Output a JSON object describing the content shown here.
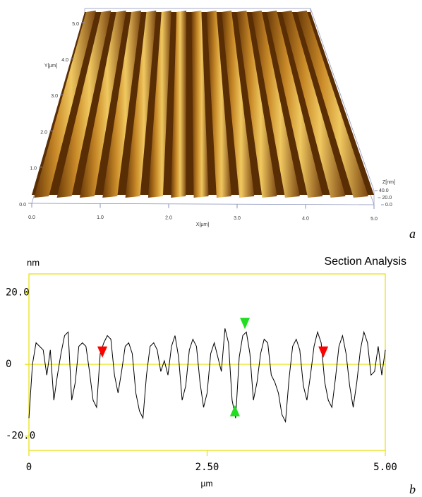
{
  "chart_data": [
    {
      "type": "surface",
      "panel_label": "a",
      "xlabel": "X[µm]",
      "ylabel": "Y[µm]",
      "zlabel": "Z[nm]",
      "xlim": [
        0,
        5
      ],
      "ylim": [
        0,
        5
      ],
      "zlim": [
        0,
        40
      ],
      "xticks": [
        {
          "value": 0,
          "label": "0.0"
        },
        {
          "value": 1,
          "label": "1.0"
        },
        {
          "value": 2,
          "label": "2.0"
        },
        {
          "value": 3,
          "label": "3.0"
        },
        {
          "value": 4,
          "label": "4.0"
        },
        {
          "value": 5,
          "label": "5.0"
        }
      ],
      "yticks": [
        {
          "value": 0,
          "label": "0.0"
        },
        {
          "value": 1,
          "label": "1.0"
        },
        {
          "value": 2,
          "label": "2.0"
        },
        {
          "value": 3,
          "label": "3.0"
        },
        {
          "value": 4,
          "label": "4.0"
        },
        {
          "value": 5,
          "label": "5.0"
        }
      ],
      "zticks": [
        {
          "value": 0,
          "label": "0.0"
        },
        {
          "value": 20,
          "label": "20.0"
        },
        {
          "value": 40,
          "label": "40.0"
        }
      ]
    },
    {
      "type": "line",
      "title": "Section Analysis",
      "panel_label": "b",
      "ylabel": "nm",
      "xlabel": "µm",
      "color": "#000000",
      "frame_color": "#e6e000",
      "zero_line": true,
      "xlim": [
        0,
        5
      ],
      "ylim": [
        -24,
        25.2
      ],
      "xticks": [
        0,
        {
          "value": 2.5,
          "label": "2.50"
        },
        {
          "value": 5,
          "label": "5.00"
        }
      ],
      "yticks": [
        {
          "value": 20,
          "label": "20.0"
        },
        0,
        {
          "value": -20,
          "label": "-20.0"
        }
      ],
      "x": [
        0,
        0.05,
        0.1,
        0.15,
        0.2,
        0.25,
        0.3,
        0.35,
        0.4,
        0.45,
        0.5,
        0.55,
        0.6,
        0.65,
        0.7,
        0.75,
        0.8,
        0.85,
        0.9,
        0.95,
        1,
        1.05,
        1.1,
        1.15,
        1.2,
        1.25,
        1.3,
        1.35,
        1.4,
        1.45,
        1.5,
        1.55,
        1.6,
        1.65,
        1.7,
        1.75,
        1.8,
        1.85,
        1.9,
        1.95,
        2,
        2.05,
        2.1,
        2.15,
        2.2,
        2.25,
        2.3,
        2.35,
        2.4,
        2.45,
        2.5,
        2.55,
        2.6,
        2.65,
        2.7,
        2.75,
        2.8,
        2.85,
        2.9,
        2.95,
        3,
        3.05,
        3.1,
        3.15,
        3.2,
        3.25,
        3.3,
        3.35,
        3.4,
        3.45,
        3.5,
        3.55,
        3.6,
        3.65,
        3.7,
        3.75,
        3.8,
        3.85,
        3.9,
        3.95,
        4,
        4.05,
        4.1,
        4.15,
        4.2,
        4.25,
        4.3,
        4.35,
        4.4,
        4.45,
        4.5,
        4.55,
        4.6,
        4.65,
        4.7,
        4.75,
        4.8,
        4.85,
        4.9,
        4.95,
        5
      ],
      "values": [
        -15,
        0,
        6,
        5,
        4,
        -3,
        4,
        -10,
        -3,
        3,
        8,
        9,
        -10,
        -5,
        5,
        6,
        5,
        -2,
        -10,
        -12,
        3,
        6,
        8,
        7,
        -3,
        -8,
        -2,
        5,
        6,
        3,
        -8,
        -13,
        -15,
        -3,
        5,
        6,
        4,
        -2,
        1,
        -3,
        5,
        8,
        2,
        -10,
        -6,
        4,
        7,
        5,
        -5,
        -12,
        -8,
        3,
        6,
        2,
        -2,
        10,
        6,
        -10,
        -15,
        2,
        8,
        9,
        3,
        -10,
        -5,
        3,
        7,
        6,
        -3,
        -5,
        -8,
        -14,
        -16,
        -4,
        5,
        7,
        4,
        -6,
        -10,
        -3,
        5,
        9,
        6,
        -5,
        -10,
        -12,
        -4,
        5,
        8,
        3,
        -6,
        -12,
        -5,
        4,
        9,
        6,
        -3,
        -2,
        5,
        -3,
        4
      ],
      "markers": [
        {
          "x": 1.03,
          "y": 3,
          "color": "#ff0000",
          "shape": "down"
        },
        {
          "x": 4.13,
          "y": 3,
          "color": "#ff0000",
          "shape": "down"
        },
        {
          "x": 3.03,
          "y": 11,
          "color": "#22dd22",
          "shape": "down"
        },
        {
          "x": 2.89,
          "y": -12.5,
          "color": "#22dd22",
          "shape": "up"
        }
      ]
    }
  ]
}
